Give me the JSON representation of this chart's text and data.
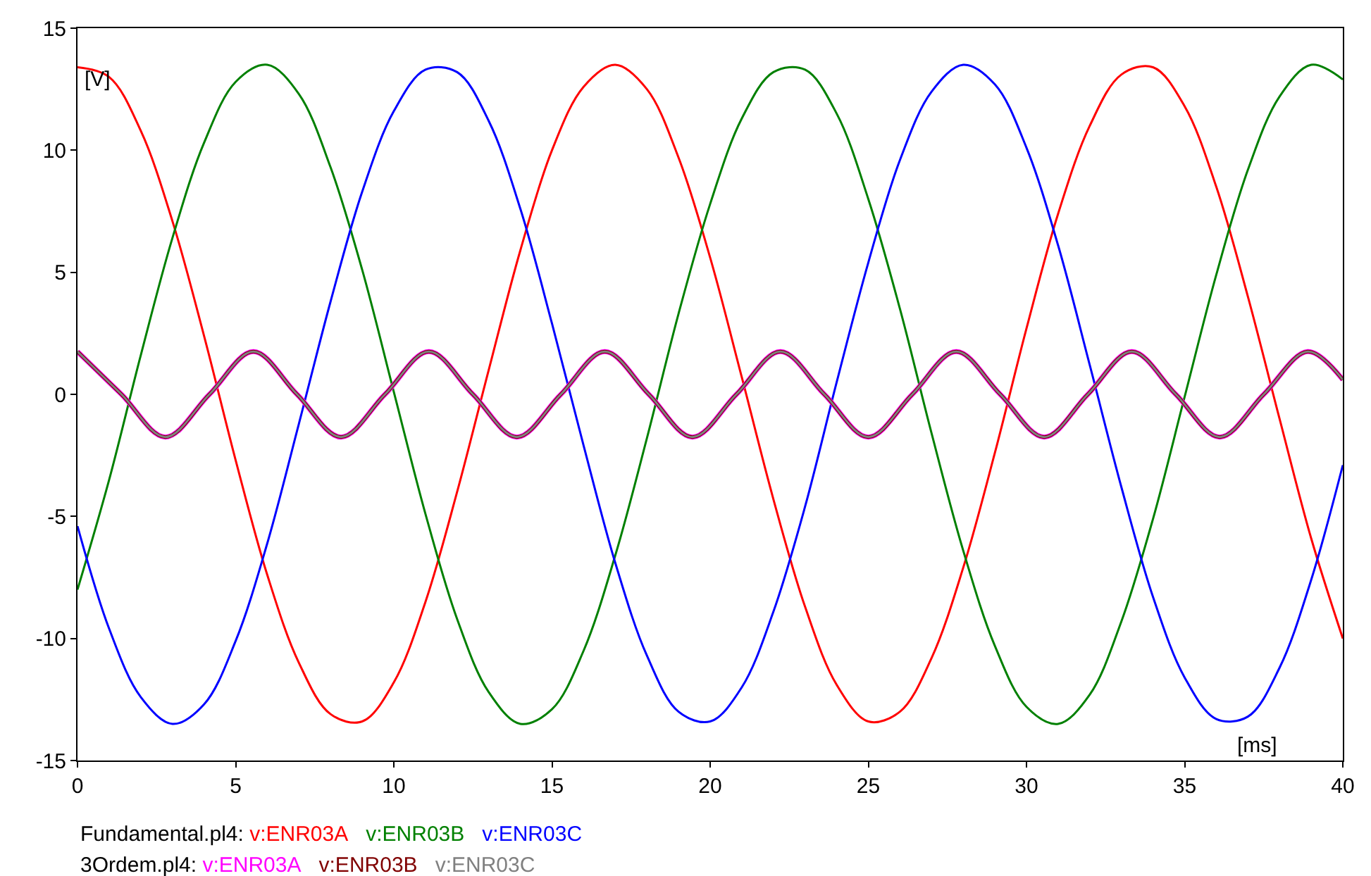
{
  "chart_data": {
    "type": "line",
    "xlabel": "[ms]",
    "ylabel": "[V]",
    "x": [
      0,
      1,
      2,
      3,
      4,
      5,
      6,
      7,
      8,
      9,
      10,
      11,
      12,
      13,
      14,
      15,
      16,
      17,
      18,
      19,
      20,
      21,
      22,
      23,
      24,
      25,
      26,
      27,
      28,
      29,
      30,
      31,
      32,
      33,
      34,
      35,
      36,
      37,
      38,
      39,
      40
    ],
    "xlim": [
      0,
      40
    ],
    "xticks": [
      0,
      5,
      10,
      15,
      20,
      25,
      30,
      35,
      40
    ],
    "ylim": [
      -15,
      15
    ],
    "yticks": [
      -15,
      -10,
      -5,
      0,
      5,
      10,
      15
    ],
    "legend": "bottom",
    "annotations": [
      "Fundamental.pl4:",
      "3Ordem.pl4:"
    ],
    "series": [
      {
        "name": "v:ENR03A",
        "color": "#ff0000",
        "values": [
          13.4,
          13.0,
          10.8,
          7.1,
          2.4,
          -2.7,
          -7.4,
          -11.0,
          -13.1,
          -13.4,
          -11.8,
          -8.5,
          -4.0,
          1.0,
          5.9,
          10.0,
          12.6,
          13.5,
          12.5,
          9.7,
          5.6,
          0.7,
          -4.3,
          -8.7,
          -11.9,
          -13.4,
          -13.0,
          -10.8,
          -7.1,
          -2.4,
          2.7,
          7.4,
          11.0,
          13.1,
          13.4,
          11.8,
          8.5,
          4.0,
          -1.0,
          -5.9,
          -10.0
        ]
      },
      {
        "name": "v:ENR03B",
        "color": "#008000",
        "values": [
          -8.0,
          -3.5,
          1.6,
          6.4,
          10.3,
          12.8,
          13.5,
          12.3,
          9.3,
          5.1,
          0.1,
          -4.9,
          -9.2,
          -12.2,
          -13.5,
          -12.9,
          -10.5,
          -6.6,
          -1.8,
          3.3,
          7.8,
          11.3,
          13.2,
          13.3,
          11.5,
          8.0,
          3.5,
          -1.6,
          -6.4,
          -10.3,
          -12.8,
          -13.5,
          -12.3,
          -9.3,
          -5.1,
          -0.1,
          4.9,
          9.2,
          12.2,
          13.5,
          12.9
        ]
      },
      {
        "name": "v:ENR03C",
        "color": "#0000ff",
        "values": [
          -5.4,
          -9.6,
          -12.4,
          -13.5,
          -12.7,
          -10.1,
          -6.1,
          -1.2,
          3.8,
          8.3,
          11.6,
          13.3,
          13.2,
          11.2,
          7.6,
          2.9,
          -2.1,
          -6.9,
          -10.7,
          -13.0,
          -13.4,
          -12.0,
          -8.9,
          -4.6,
          0.5,
          5.4,
          9.6,
          12.4,
          13.5,
          12.7,
          10.1,
          6.1,
          1.2,
          -3.8,
          -8.3,
          -11.6,
          -13.3,
          -13.2,
          -11.2,
          -7.6,
          -2.9
        ]
      },
      {
        "name": "v:ENR03A",
        "color": "#ff00ff",
        "x": [
          0,
          1.39,
          2.78,
          4.17,
          5.56,
          6.94,
          8.33,
          9.72,
          11.11,
          12.5,
          13.89,
          15.28,
          16.67,
          18.06,
          19.44,
          20.83,
          22.22,
          23.61,
          25,
          26.39,
          27.78,
          29.17,
          30.56,
          31.94,
          33.33,
          34.72,
          36.11,
          37.5,
          38.89,
          40
        ],
        "values": [
          1.75,
          0,
          -1.75,
          0,
          1.75,
          0,
          -1.75,
          0,
          1.75,
          0,
          -1.75,
          0,
          1.75,
          0,
          -1.75,
          0,
          1.75,
          0,
          -1.75,
          0,
          1.75,
          0,
          -1.75,
          0,
          1.75,
          0,
          -1.75,
          0,
          1.75,
          0.6
        ]
      },
      {
        "name": "v:ENR03B",
        "color": "#800000",
        "x": [
          0,
          1.39,
          2.78,
          4.17,
          5.56,
          6.94,
          8.33,
          9.72,
          11.11,
          12.5,
          13.89,
          15.28,
          16.67,
          18.06,
          19.44,
          20.83,
          22.22,
          23.61,
          25,
          26.39,
          27.78,
          29.17,
          30.56,
          31.94,
          33.33,
          34.72,
          36.11,
          37.5,
          38.89,
          40
        ],
        "values": [
          1.75,
          0,
          -1.75,
          0,
          1.75,
          0,
          -1.75,
          0,
          1.75,
          0,
          -1.75,
          0,
          1.75,
          0,
          -1.75,
          0,
          1.75,
          0,
          -1.75,
          0,
          1.75,
          0,
          -1.75,
          0,
          1.75,
          0,
          -1.75,
          0,
          1.75,
          0.6
        ]
      },
      {
        "name": "v:ENR03C",
        "color": "#808080",
        "x": [
          0,
          1.39,
          2.78,
          4.17,
          5.56,
          6.94,
          8.33,
          9.72,
          11.11,
          12.5,
          13.89,
          15.28,
          16.67,
          18.06,
          19.44,
          20.83,
          22.22,
          23.61,
          25,
          26.39,
          27.78,
          29.17,
          30.56,
          31.94,
          33.33,
          34.72,
          36.11,
          37.5,
          38.89,
          40
        ],
        "values": [
          1.75,
          0,
          -1.75,
          0,
          1.75,
          0,
          -1.75,
          0,
          1.75,
          0,
          -1.75,
          0,
          1.75,
          0,
          -1.75,
          0,
          1.75,
          0,
          -1.75,
          0,
          1.75,
          0,
          -1.75,
          0,
          1.75,
          0,
          -1.75,
          0,
          1.75,
          0.6
        ]
      }
    ]
  }
}
